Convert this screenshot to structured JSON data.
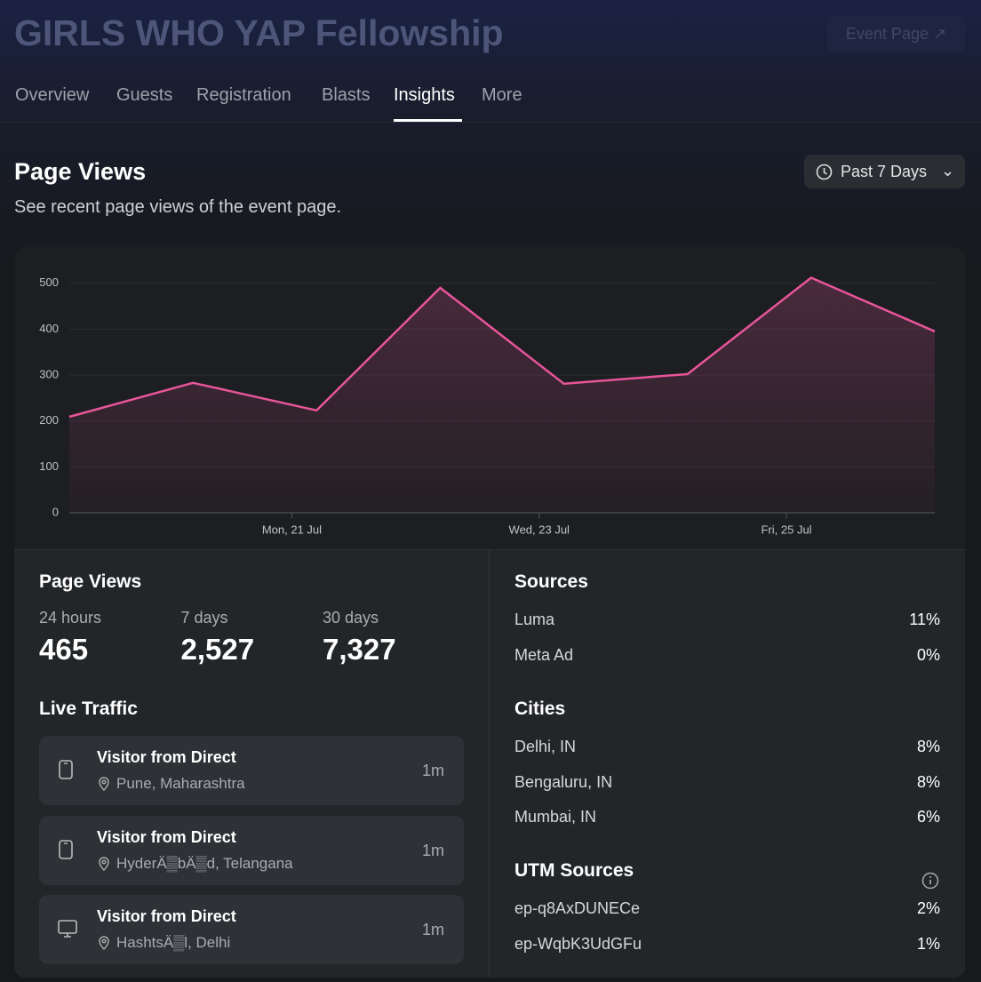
{
  "header": {
    "title": "GIRLS WHO YAP Fellowship",
    "event_page_button": "Event Page"
  },
  "tabs": [
    "Overview",
    "Guests",
    "Registration",
    "Blasts",
    "Insights",
    "More"
  ],
  "section": {
    "title": "Page Views",
    "subtitle": "See recent page views of the event page.",
    "range_button": "Past 7 Days"
  },
  "chart_data": {
    "type": "line",
    "x": [
      19.2,
      20.2,
      21.2,
      22.2,
      23.2,
      24.2,
      25.2,
      26.2
    ],
    "series": [
      {
        "name": "Page Views",
        "color": "#e8559a",
        "values": [
          209,
          283,
          223,
          490,
          281,
          302,
          512,
          395
        ]
      }
    ],
    "xlim": [
      19.2,
      26.2
    ],
    "xticks": [
      {
        "value": 21,
        "label": "Mon, 21 Jul"
      },
      {
        "value": 23,
        "label": "Wed, 23 Jul"
      },
      {
        "value": 25,
        "label": "Fri, 25 Jul"
      }
    ],
    "ylim": [
      0,
      540
    ],
    "yticks": [
      0,
      100,
      200,
      300,
      400,
      500
    ],
    "grid": true
  },
  "stats": {
    "title": "Page Views",
    "items": [
      {
        "label": "24 hours",
        "value": "465"
      },
      {
        "label": "7 days",
        "value": "2,527"
      },
      {
        "label": "30 days",
        "value": "7,327"
      }
    ]
  },
  "live_traffic": {
    "title": "Live Traffic",
    "items": [
      {
        "device": "mobile",
        "title": "Visitor from Direct",
        "location": "Pune, Maharashtra",
        "time": "1m"
      },
      {
        "device": "mobile",
        "title": "Visitor from Direct",
        "location": "HyderÄ▒bÄ▒d, Telangana",
        "time": "1m"
      },
      {
        "device": "desktop",
        "title": "Visitor from Direct",
        "location": "HashtsÄ▒l, Delhi",
        "time": "1m"
      }
    ]
  },
  "sources": {
    "title": "Sources",
    "rows": [
      [
        "Luma",
        "11%"
      ],
      [
        "Meta Ad",
        "0%"
      ]
    ]
  },
  "cities": {
    "title": "Cities",
    "rows": [
      [
        "Delhi, IN",
        "8%"
      ],
      [
        "Bengaluru, IN",
        "8%"
      ],
      [
        "Mumbai, IN",
        "6%"
      ]
    ]
  },
  "utm_sources": {
    "title": "UTM Sources",
    "rows": [
      [
        "ep-q8AxDUNECe",
        "2%"
      ],
      [
        "ep-WqbK3UdGFu",
        "1%"
      ]
    ]
  }
}
